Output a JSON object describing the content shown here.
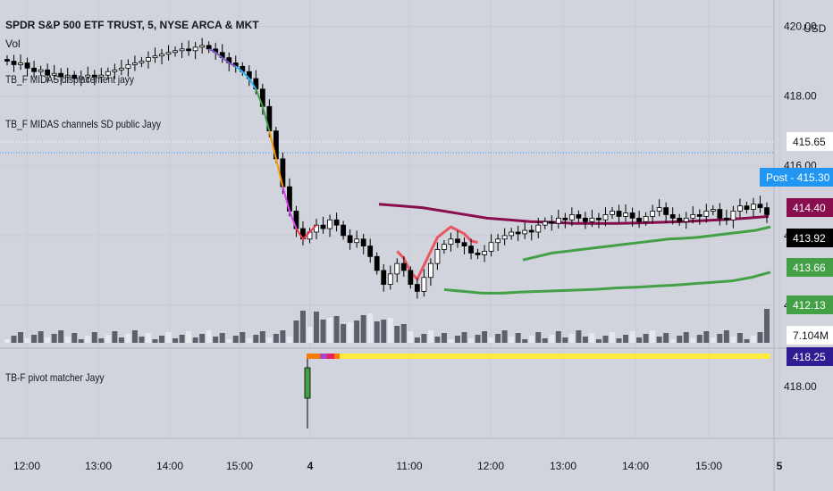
{
  "legend": {
    "title": "SPDR S&P 500 ETF TRUST, 5, NYSE ARCA & MKT",
    "vol": "Vol",
    "ind1": "TB_F MIDAS displacement  jayy",
    "ind2": "TB_F MIDAS channels SD public Jayy",
    "ind3": "TB-F pivot matcher Jayy"
  },
  "colors": {
    "background": "#d1d4dc",
    "bull_candle": "#ffffff",
    "bear_candle": "#000000",
    "midas_resistance": "#880e4f",
    "midas_support": "#43a047",
    "displacement_red": "#f23645",
    "volume_gray": "#5d606b",
    "volume_light": "#e6e8ee"
  },
  "chart_data": {
    "type": "candlestick",
    "symbol": "SPDR S&P 500 ETF TRUST",
    "interval": "5",
    "exchange": "NYSE ARCA & MKT",
    "currency": "USD",
    "price_axis_ticks": [
      420.0,
      418.0,
      416.0,
      414.0,
      412.0
    ],
    "price_range": [
      410.9,
      420.6
    ],
    "time_axis_labels": [
      "12:00",
      "13:00",
      "14:00",
      "15:00",
      "4",
      "11:00",
      "12:00",
      "13:00",
      "14:00",
      "15:00",
      "5"
    ],
    "price_tags": [
      {
        "label": "415.65",
        "color": "#ffffff",
        "text": "#131722"
      },
      {
        "label": "Post - 415.30",
        "color": "#2196f3",
        "text": "#ffffff"
      },
      {
        "label": "414.40",
        "color": "#880e4f",
        "text": "#ffffff"
      },
      {
        "label": "413.92",
        "color": "#000000",
        "text": "#ffffff"
      },
      {
        "label": "413.66",
        "color": "#43a047",
        "text": "#ffffff"
      },
      {
        "label": "412.13",
        "color": "#43a047",
        "text": "#ffffff"
      },
      {
        "label": "7.104M",
        "color": "#ffffff",
        "text": "#131722"
      }
    ],
    "lower_pane": {
      "name": "TB-F pivot matcher Jayy",
      "axis_tick": "418.00",
      "value_tag": {
        "label": "418.25",
        "color": "#311b92",
        "text": "#ffffff"
      }
    },
    "close_series": [
      419.0,
      418.9,
      418.95,
      418.8,
      418.7,
      418.75,
      418.6,
      418.65,
      418.55,
      418.6,
      418.5,
      418.55,
      418.6,
      418.55,
      418.6,
      418.7,
      418.75,
      418.8,
      418.9,
      418.95,
      419.0,
      419.1,
      419.15,
      419.2,
      419.25,
      419.3,
      419.35,
      419.3,
      419.4,
      419.45,
      419.35,
      419.25,
      419.1,
      418.95,
      418.85,
      418.7,
      418.5,
      418.2,
      417.7,
      417.0,
      416.2,
      415.4,
      414.7,
      414.2,
      413.9,
      414.1,
      414.3,
      414.2,
      414.45,
      414.3,
      414.0,
      413.8,
      413.9,
      413.7,
      413.4,
      413.0,
      412.6,
      412.9,
      413.2,
      413.0,
      412.6,
      412.4,
      412.8,
      413.2,
      413.6,
      413.75,
      413.9,
      413.8,
      413.7,
      413.5,
      413.45,
      413.55,
      413.8,
      413.9,
      414.0,
      414.1,
      414.05,
      414.15,
      414.1,
      414.3,
      414.4,
      414.35,
      414.5,
      414.45,
      414.6,
      414.5,
      414.4,
      414.5,
      414.45,
      414.6,
      414.7,
      414.55,
      414.65,
      414.5,
      414.4,
      414.55,
      414.7,
      414.8,
      414.6,
      414.5,
      414.4,
      414.5,
      414.6,
      414.55,
      414.7,
      414.75,
      414.5,
      414.45,
      414.7,
      414.85,
      414.75,
      414.9,
      414.8,
      414.6
    ],
    "resistance_channel": [
      414.9,
      414.85,
      414.8,
      414.7,
      414.6,
      414.5,
      414.45,
      414.4,
      414.38,
      414.35,
      414.35,
      414.35,
      414.36,
      414.38,
      414.4,
      414.43,
      414.46,
      414.5,
      414.55
    ],
    "support_upper_channel": [
      413.3,
      413.4,
      413.5,
      413.55,
      413.6,
      413.65,
      413.7,
      413.75,
      413.8,
      413.85,
      413.9,
      413.92,
      413.95,
      414.0,
      414.05,
      414.1,
      414.15,
      414.25
    ],
    "support_lower_channel": [
      412.45,
      412.4,
      412.35,
      412.35,
      412.38,
      412.4,
      412.42,
      412.44,
      412.46,
      412.5,
      412.52,
      412.55,
      412.58,
      412.62,
      412.66,
      412.7,
      412.8,
      412.95
    ],
    "volume_last": "7.104M",
    "pivot_bar_colors": [
      "#f57c00",
      "#f57c00",
      "#ab47bc",
      "#e91e63",
      "#ffeb3b"
    ]
  }
}
